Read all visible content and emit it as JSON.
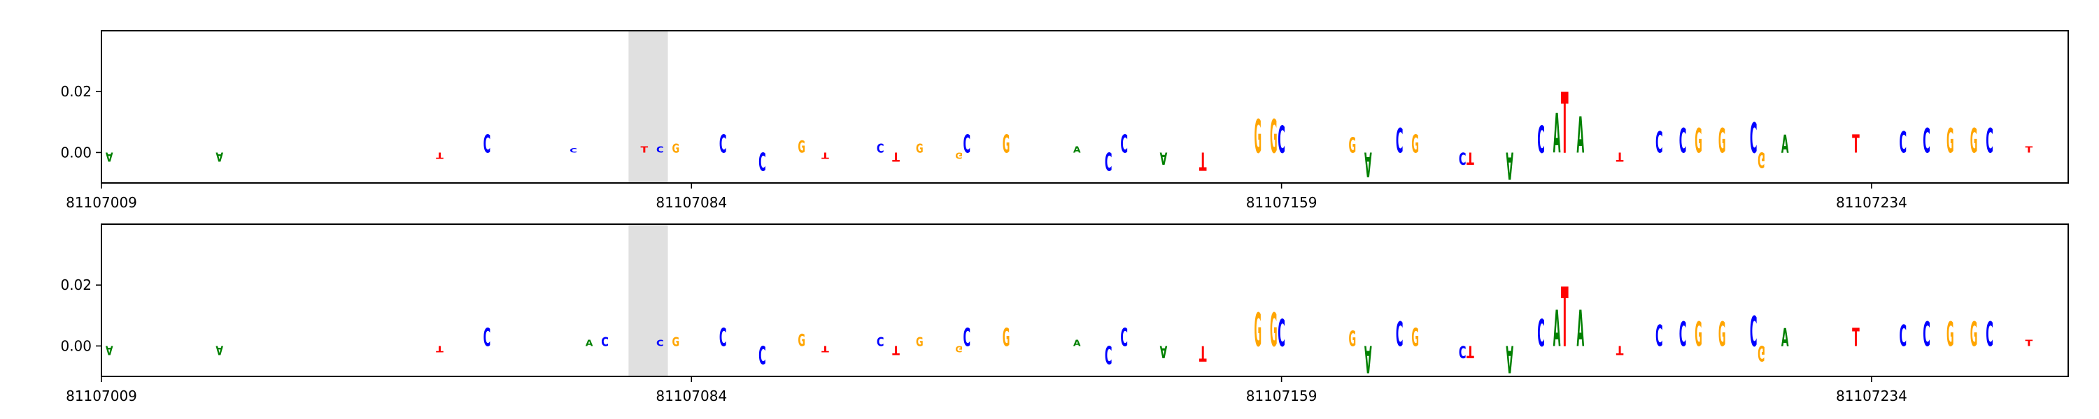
{
  "chart_data": [
    {
      "type": "logo",
      "xlim": [
        81107009,
        81107259
      ],
      "ylim": [
        -0.01,
        0.04
      ],
      "xticks": [
        81107009,
        81107084,
        81107159,
        81107234
      ],
      "yticks": [
        {
          "value": 0,
          "label": "0.00"
        },
        {
          "value": 0.02,
          "label": "0.02"
        }
      ],
      "highlight": [
        81107076,
        81107081
      ],
      "highlight_color": "#e0e0e0",
      "letter_colors": {
        "A": "#008000",
        "C": "#0000ff",
        "G": "#ffa500",
        "T": "#ff0000"
      },
      "letters": [
        "A",
        "A",
        "T",
        "C",
        "C",
        "T",
        "C",
        "G",
        "C",
        "C",
        "G",
        "T",
        "C",
        "T",
        "G",
        "G",
        "C",
        "G",
        "A",
        "C",
        "C",
        "A",
        "T",
        "G",
        "G",
        "C",
        "G",
        "A",
        "C",
        "G",
        "C",
        "T",
        "A",
        "C",
        "A",
        "T",
        "A",
        "T",
        "C",
        "C",
        "G",
        "G",
        "C",
        "G",
        "A",
        "T",
        "C",
        "C",
        "G",
        "G",
        "C",
        "T"
      ],
      "x": [
        81107010,
        81107024,
        81107052,
        81107058,
        81107069,
        81107078,
        81107080,
        81107082,
        81107088,
        81107093,
        81107098,
        81107101,
        81107108,
        81107110,
        81107113,
        81107118,
        81107119,
        81107124,
        81107133,
        81107137,
        81107139,
        81107144,
        81107149,
        81107156,
        81107158,
        81107159,
        81107168,
        81107170,
        81107174,
        81107176,
        81107182,
        81107183,
        81107188,
        81107192,
        81107194,
        81107195,
        81107197,
        81107202,
        81107207,
        81107210,
        81107212,
        81107215,
        81107219,
        81107220,
        81107223,
        81107232,
        81107238,
        81107241,
        81107244,
        81107247,
        81107249,
        81107254
      ],
      "values": [
        -0.003,
        -0.003,
        -0.002,
        0.006,
        0.0015,
        0.002,
        0.002,
        0.003,
        0.006,
        -0.006,
        0.004,
        -0.002,
        0.003,
        -0.003,
        0.003,
        -0.002,
        0.006,
        0.006,
        0.002,
        -0.006,
        0.006,
        -0.004,
        -0.006,
        0.011,
        0.011,
        0.009,
        0.005,
        -0.008,
        0.008,
        0.006,
        -0.004,
        -0.004,
        -0.009,
        0.009,
        0.013,
        0.02,
        0.012,
        -0.003,
        0.007,
        0.008,
        0.008,
        0.008,
        0.01,
        -0.005,
        0.006,
        0.006,
        0.007,
        0.008,
        0.008,
        0.008,
        0.008,
        0.002
      ]
    },
    {
      "type": "logo",
      "xlim": [
        81107009,
        81107259
      ],
      "ylim": [
        -0.01,
        0.04
      ],
      "xticks": [
        81107009,
        81107084,
        81107159,
        81107234
      ],
      "yticks": [
        {
          "value": 0,
          "label": "0.00"
        },
        {
          "value": 0.02,
          "label": "0.02"
        }
      ],
      "highlight": [
        81107076,
        81107081
      ],
      "highlight_color": "#e0e0e0",
      "letters": [
        "A",
        "A",
        "T",
        "C",
        "A",
        "C",
        "C",
        "G",
        "C",
        "C",
        "G",
        "T",
        "C",
        "T",
        "G",
        "G",
        "C",
        "G",
        "A",
        "C",
        "C",
        "A",
        "T",
        "G",
        "G",
        "C",
        "G",
        "A",
        "C",
        "G",
        "C",
        "T",
        "A",
        "C",
        "A",
        "T",
        "A",
        "T",
        "C",
        "C",
        "G",
        "G",
        "C",
        "G",
        "A",
        "T",
        "C",
        "C",
        "G",
        "G",
        "C",
        "T"
      ],
      "letter_colors": {
        "A": "#008000",
        "C": "#0000ff",
        "G": "#ffa500",
        "T": "#ff0000"
      },
      "x": [
        81107010,
        81107024,
        81107052,
        81107058,
        81107071,
        81107073,
        81107080,
        81107082,
        81107088,
        81107093,
        81107098,
        81107101,
        81107108,
        81107110,
        81107113,
        81107118,
        81107119,
        81107124,
        81107133,
        81107137,
        81107139,
        81107144,
        81107149,
        81107156,
        81107158,
        81107159,
        81107168,
        81107170,
        81107174,
        81107176,
        81107182,
        81107183,
        81107188,
        81107192,
        81107194,
        81107195,
        81107197,
        81107202,
        81107207,
        81107210,
        81107212,
        81107215,
        81107219,
        81107220,
        81107223,
        81107232,
        81107238,
        81107241,
        81107244,
        81107247,
        81107249,
        81107254
      ],
      "values": [
        -0.003,
        -0.003,
        -0.002,
        0.006,
        0.002,
        0.003,
        0.002,
        0.003,
        0.006,
        -0.006,
        0.004,
        -0.002,
        0.003,
        -0.003,
        0.003,
        -0.002,
        0.006,
        0.006,
        0.002,
        -0.006,
        0.006,
        -0.004,
        -0.005,
        0.011,
        0.011,
        0.009,
        0.005,
        -0.009,
        0.008,
        0.006,
        -0.004,
        -0.004,
        -0.009,
        0.009,
        0.012,
        0.0195,
        0.012,
        -0.003,
        0.007,
        0.008,
        0.008,
        0.008,
        0.01,
        -0.005,
        0.006,
        0.006,
        0.007,
        0.008,
        0.008,
        0.008,
        0.008,
        0.002
      ]
    }
  ]
}
